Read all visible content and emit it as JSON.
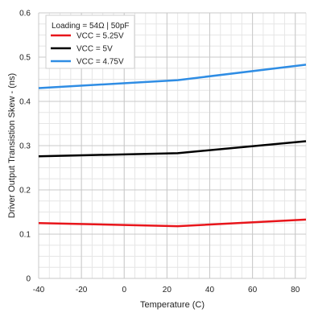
{
  "chart_data": {
    "type": "line",
    "xlabel": "Temperature (C)",
    "ylabel": "Driver Output Transistion Skew - (ns)",
    "xlim": [
      -40,
      85
    ],
    "ylim": [
      0,
      0.6
    ],
    "x_ticks": [
      -40,
      -20,
      0,
      20,
      40,
      60,
      80
    ],
    "y_ticks": [
      0,
      0.1,
      0.2,
      0.3,
      0.4,
      0.5,
      0.6
    ],
    "y_tick_labels": [
      "0",
      "0.1",
      "0.2",
      "0.3",
      "0.4",
      "0.5",
      "0.6"
    ],
    "x_minor_step": 5,
    "y_minor_step": 0.025,
    "grid": true,
    "legend": {
      "placement": "top-left",
      "title": "Loading = 54Ω | 50pF"
    },
    "series": [
      {
        "name": "VCC = 5.25V",
        "color": "#e8151b",
        "x": [
          -40,
          25,
          85
        ],
        "y": [
          0.125,
          0.118,
          0.133
        ]
      },
      {
        "name": "VCC = 5V",
        "color": "#000000",
        "x": [
          -40,
          25,
          85
        ],
        "y": [
          0.276,
          0.283,
          0.31
        ]
      },
      {
        "name": "VCC = 4.75V",
        "color": "#2f8de4",
        "x": [
          -40,
          25,
          85
        ],
        "y": [
          0.43,
          0.448,
          0.483
        ]
      }
    ]
  }
}
